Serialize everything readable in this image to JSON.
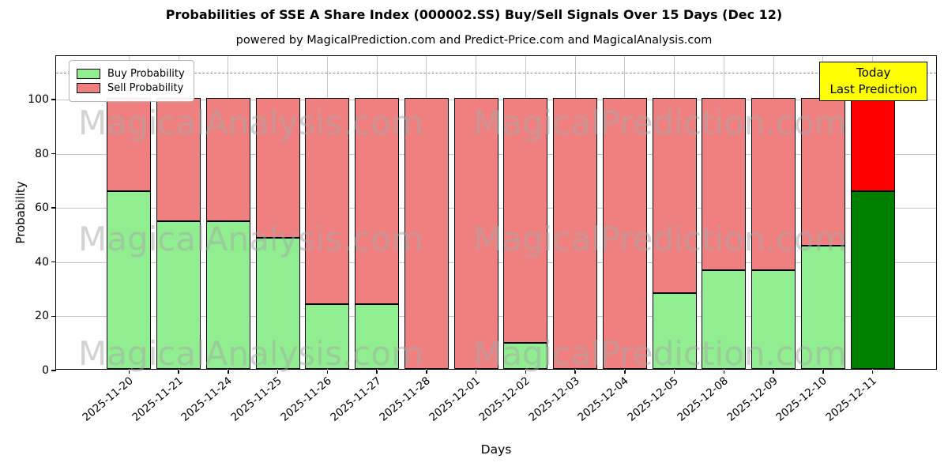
{
  "chart_data": {
    "type": "bar",
    "stacked": true,
    "title": "Probabilities of SSE A Share Index (000002.SS) Buy/Sell Signals Over 15 Days (Dec 12)",
    "subtitle": "powered by MagicalPrediction.com and Predict-Price.com and MagicalAnalysis.com",
    "xlabel": "Days",
    "ylabel": "Probability",
    "categories": [
      "2025-11-20",
      "2025-11-21",
      "2025-11-24",
      "2025-11-25",
      "2025-11-26",
      "2025-11-27",
      "2025-11-28",
      "2025-12-01",
      "2025-12-02",
      "2025-12-03",
      "2025-12-04",
      "2025-12-05",
      "2025-12-08",
      "2025-12-09",
      "2025-12-10",
      "2025-12-11"
    ],
    "series": [
      {
        "name": "Buy Probability",
        "color": "#90ee90",
        "values": [
          65.5,
          54.5,
          54.5,
          48.5,
          24,
          24,
          0,
          0,
          9.5,
          0,
          0,
          28,
          36.5,
          36.5,
          45.5,
          65.5
        ]
      },
      {
        "name": "Sell Probability",
        "color": "#f08080",
        "values": [
          34.5,
          45.5,
          45.5,
          51.5,
          76,
          76,
          100,
          100,
          90.5,
          100,
          100,
          72,
          63.5,
          63.5,
          54.5,
          34.5
        ]
      }
    ],
    "today_bar": {
      "index": 15,
      "buy_color": "#008000",
      "sell_color": "#ff0000"
    },
    "ylim": [
      0,
      116
    ],
    "yticks": [
      0,
      20,
      40,
      60,
      80,
      100
    ],
    "threshold_line": {
      "y": 110,
      "style": "dashed",
      "color": "#8a8a8a"
    },
    "grid": true,
    "legend_position": "upper-left",
    "annotation_box": {
      "line1": "Today",
      "line2": "Last Prediction",
      "bg_color": "#ffff00"
    },
    "watermarks": {
      "left": "MagicalAnalysis.com",
      "right": "MagicalPrediction.com"
    }
  }
}
